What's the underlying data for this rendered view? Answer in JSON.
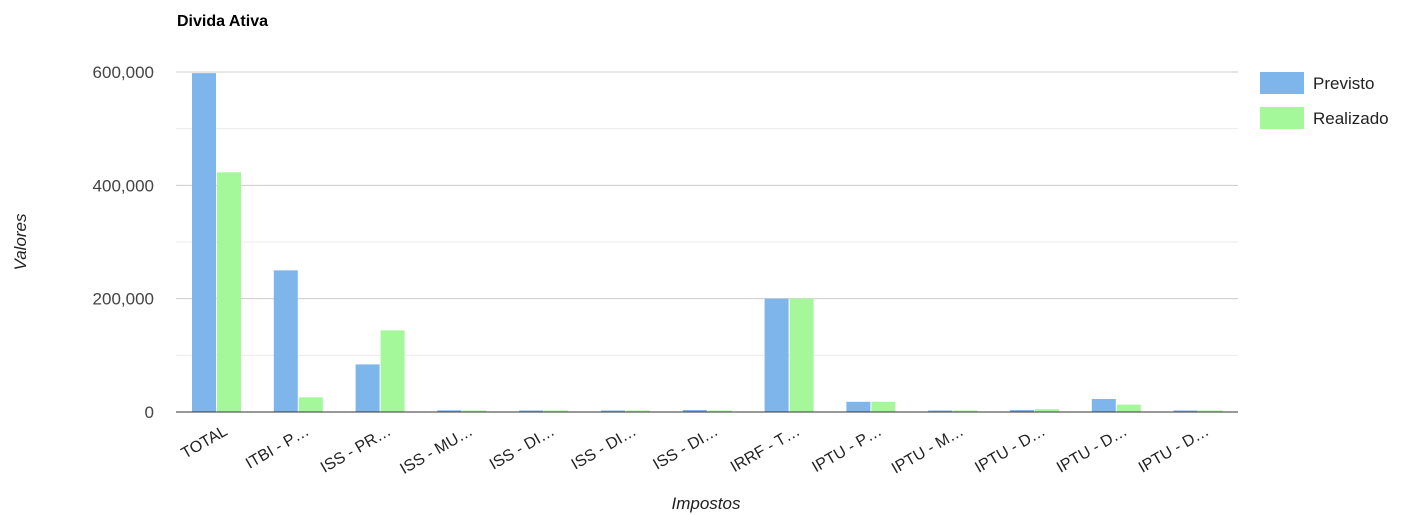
{
  "chart_data": {
    "type": "bar",
    "title": "Divida Ativa",
    "xlabel": "Impostos",
    "ylabel": "Valores",
    "categories": [
      "TOTAL",
      "ITBI - P…",
      "ISS - PR…",
      "ISS - MU…",
      "ISS - DI…",
      "ISS - DI…",
      "ISS - DI…",
      "IRRF - T…",
      "IPTU - P…",
      "IPTU - M…",
      "IPTU - D…",
      "IPTU - D…",
      "IPTU - D…"
    ],
    "series": [
      {
        "name": "Previsto",
        "color": "#7eb5eb",
        "values": [
          598000,
          250000,
          84000,
          3000,
          1000,
          1000,
          3500,
          200000,
          18000,
          1500,
          3500,
          23000,
          1000
        ]
      },
      {
        "name": "Realizado",
        "color": "#a4f89a",
        "values": [
          423000,
          26000,
          144000,
          2500,
          1000,
          1000,
          1500,
          200000,
          18000,
          1500,
          5000,
          13000,
          1000
        ]
      }
    ],
    "ylim": [
      0,
      600000
    ],
    "yticks": [
      0,
      200000,
      400000,
      600000
    ],
    "ytick_labels": [
      "0",
      "200,000",
      "400,000",
      "600,000"
    ],
    "minor_gridlines": [
      100000,
      300000,
      500000
    ],
    "grid": true,
    "legend_position": "right",
    "gridline_color": "#cccccc",
    "axis_color": "#333333"
  }
}
